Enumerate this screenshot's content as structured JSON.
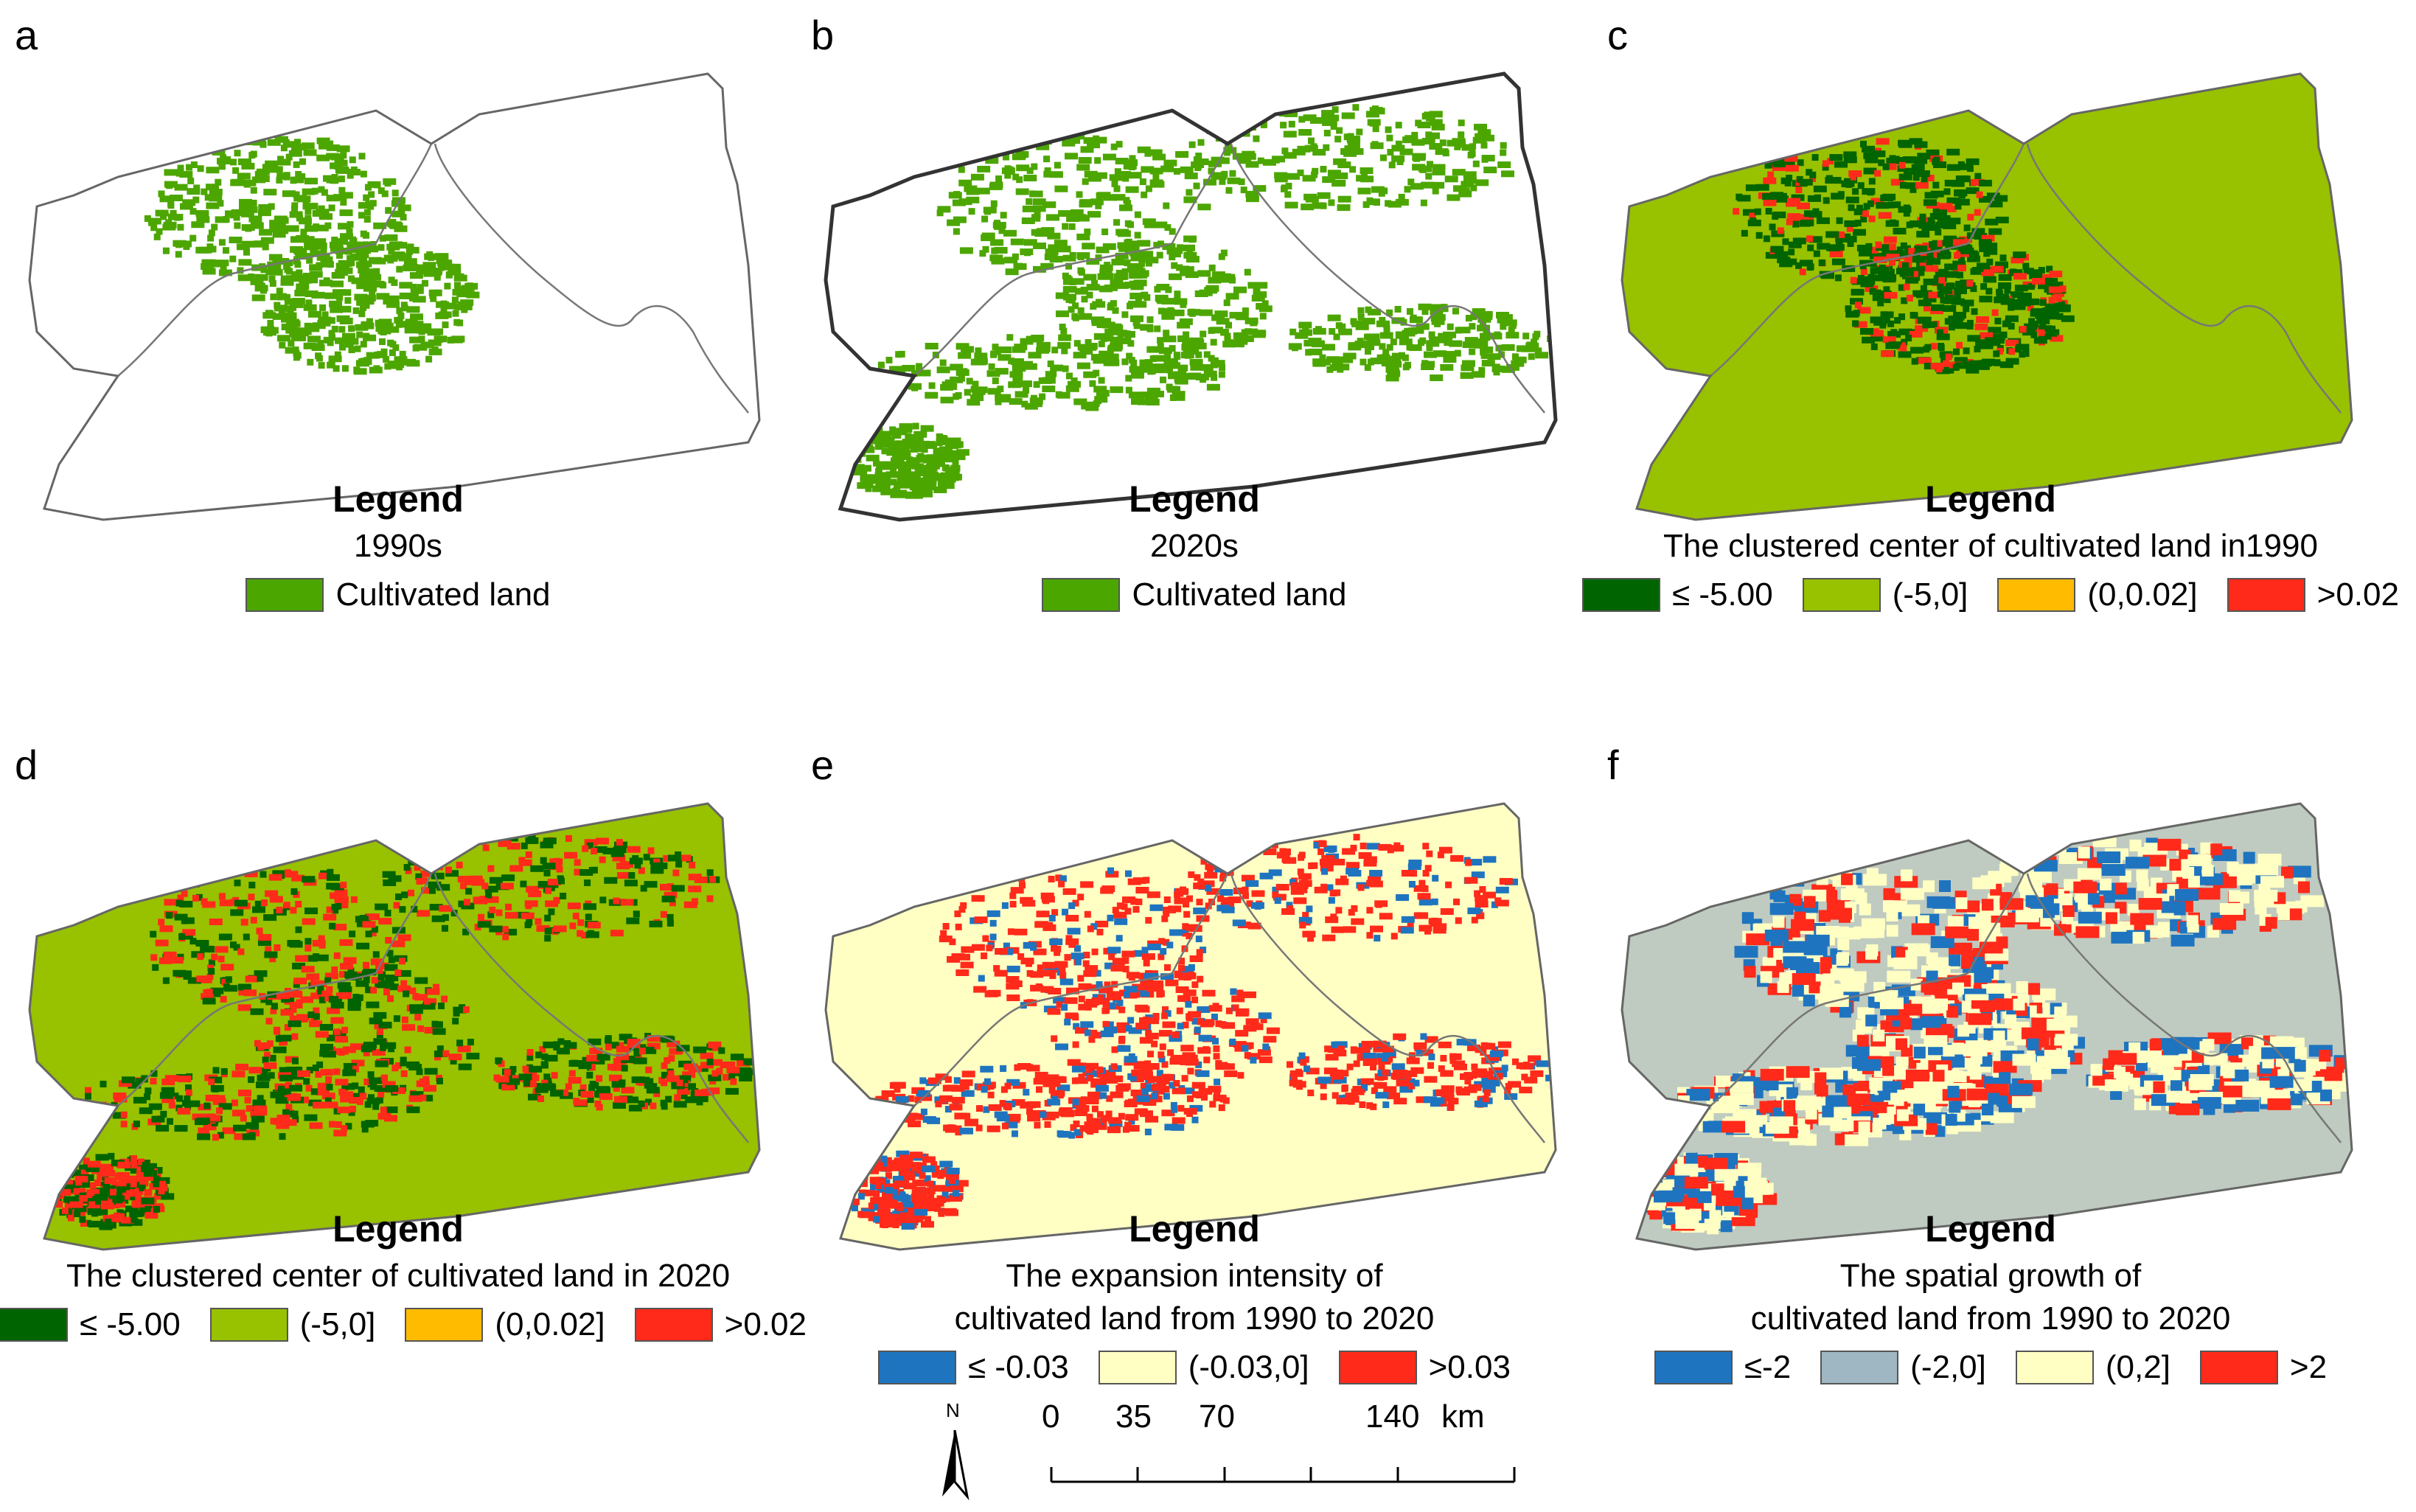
{
  "panels": [
    {
      "letter": "a",
      "map_style": "binary",
      "bg": "#ffffff",
      "legend_title": "Legend",
      "legend_subtitle": "1990s",
      "legend_items": [
        {
          "label": "Cultivated land",
          "color": "#4ca600"
        }
      ]
    },
    {
      "letter": "b",
      "map_style": "binary2020",
      "bg": "#ffffff",
      "legend_title": "Legend",
      "legend_subtitle": "2020s",
      "legend_items": [
        {
          "label": "Cultivated land",
          "color": "#4ca600"
        }
      ]
    },
    {
      "letter": "c",
      "map_style": "cluster1990",
      "bg": "#98c100",
      "legend_title": "Legend",
      "legend_subtitle": "The clustered center of cultivated land in1990",
      "legend_items": [
        {
          "label": "≤ -5.00",
          "color": "#006400"
        },
        {
          "label": "(-5,0]",
          "color": "#98c100"
        },
        {
          "label": "(0,0.02]",
          "color": "#ffbb00"
        },
        {
          "label": ">0.02",
          "color": "#ff2a1a"
        }
      ]
    },
    {
      "letter": "d",
      "map_style": "cluster2020",
      "bg": "#98c100",
      "legend_title": "Legend",
      "legend_subtitle": "The clustered center of cultivated land in 2020",
      "legend_items": [
        {
          "label": "≤ -5.00",
          "color": "#006400"
        },
        {
          "label": "(-5,0]",
          "color": "#98c100"
        },
        {
          "label": "(0,0.02]",
          "color": "#ffbb00"
        },
        {
          "label": ">0.02",
          "color": "#ff2a1a"
        }
      ]
    },
    {
      "letter": "e",
      "map_style": "expansion",
      "bg": "#ffffc4",
      "legend_title": "Legend",
      "legend_subtitle": "The expansion intensity of\ncultivated land from 1990 to 2020",
      "legend_items": [
        {
          "label": "≤ -0.03",
          "color": "#1f74bf"
        },
        {
          "label": "(-0.03,0]",
          "color": "#ffffc4"
        },
        {
          "label": ">0.03",
          "color": "#ff2a1a"
        }
      ]
    },
    {
      "letter": "f",
      "map_style": "growth",
      "bg": "#bfcbc0",
      "legend_title": "Legend",
      "legend_subtitle": "The spatial growth of\ncultivated land from 1990 to 2020",
      "legend_items": [
        {
          "label": "≤-2",
          "color": "#1f74bf"
        },
        {
          "label": "(-2,0]",
          "color": "#9fb7c3"
        },
        {
          "label": "(0,2]",
          "color": "#ffffc4"
        },
        {
          "label": ">2",
          "color": "#ff2a1a"
        }
      ]
    }
  ],
  "scale_bar": {
    "ticks": [
      "0",
      "35",
      "70",
      "140"
    ],
    "unit": "km"
  },
  "north_arrow": {
    "label": "N",
    "icon": "north-arrow-icon"
  }
}
